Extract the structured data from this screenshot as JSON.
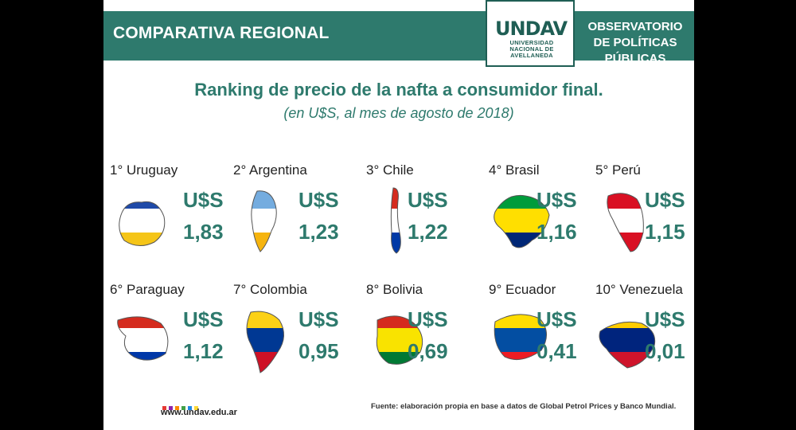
{
  "header": {
    "section": "COMPARATIVA REGIONAL",
    "logo_mark": "UNDAV",
    "logo_sub": "UNIVERSIDAD NACIONAL DE AVELLANEDA",
    "observatory": "OBSERVATORIO DE POLÍTICAS PÚBLICAS"
  },
  "chart_data": {
    "type": "table",
    "title": "Ranking de precio de la nafta a consumidor final.",
    "subtitle": "(en U$S, al mes de agosto de 2018)",
    "currency": "U$S",
    "items": [
      {
        "rank": "1° Uruguay",
        "country": "Uruguay",
        "value": 1.83,
        "label": "1,83",
        "colors": [
          "#1f4aa8",
          "#ffffff",
          "#f5c518"
        ]
      },
      {
        "rank": "2° Argentina",
        "country": "Argentina",
        "value": 1.23,
        "label": "1,23",
        "colors": [
          "#74acdf",
          "#ffffff",
          "#f6b40e"
        ]
      },
      {
        "rank": "3° Chile",
        "country": "Chile",
        "value": 1.22,
        "label": "1,22",
        "colors": [
          "#d52b1e",
          "#ffffff",
          "#0039a6"
        ]
      },
      {
        "rank": "4° Brasil",
        "country": "Brasil",
        "value": 1.16,
        "label": "1,16",
        "colors": [
          "#009c3b",
          "#ffdf00",
          "#002776"
        ]
      },
      {
        "rank": "5° Perú",
        "country": "Perú",
        "value": 1.15,
        "label": "1,15",
        "colors": [
          "#d91023",
          "#ffffff",
          "#d91023"
        ]
      },
      {
        "rank": "6° Paraguay",
        "country": "Paraguay",
        "value": 1.12,
        "label": "1,12",
        "colors": [
          "#d52b1e",
          "#ffffff",
          "#0038a8"
        ]
      },
      {
        "rank": "7° Colombia",
        "country": "Colombia",
        "value": 0.95,
        "label": "0,95",
        "colors": [
          "#fcd116",
          "#003893",
          "#ce1126"
        ]
      },
      {
        "rank": "8° Bolivia",
        "country": "Bolivia",
        "value": 0.69,
        "label": "0,69",
        "colors": [
          "#d52b1e",
          "#f9e300",
          "#007934"
        ]
      },
      {
        "rank": "9° Ecuador",
        "country": "Ecuador",
        "value": 0.41,
        "label": "0,41",
        "colors": [
          "#ffdd00",
          "#034ea2",
          "#ed1c24"
        ]
      },
      {
        "rank": "10° Venezuela",
        "country": "Venezuela",
        "value": 0.01,
        "label": "0,01",
        "colors": [
          "#ffcc00",
          "#00247d",
          "#cf142b"
        ]
      }
    ]
  },
  "footer": {
    "url": "www.undav.edu.ar",
    "source": "Fuente: elaboración propia en base a datos de Global Petrol Prices y Banco Mundial.",
    "dot_colors": [
      "#e53935",
      "#8e24aa",
      "#fb8c00",
      "#43a047",
      "#1e88e5",
      "#fdd835"
    ]
  }
}
